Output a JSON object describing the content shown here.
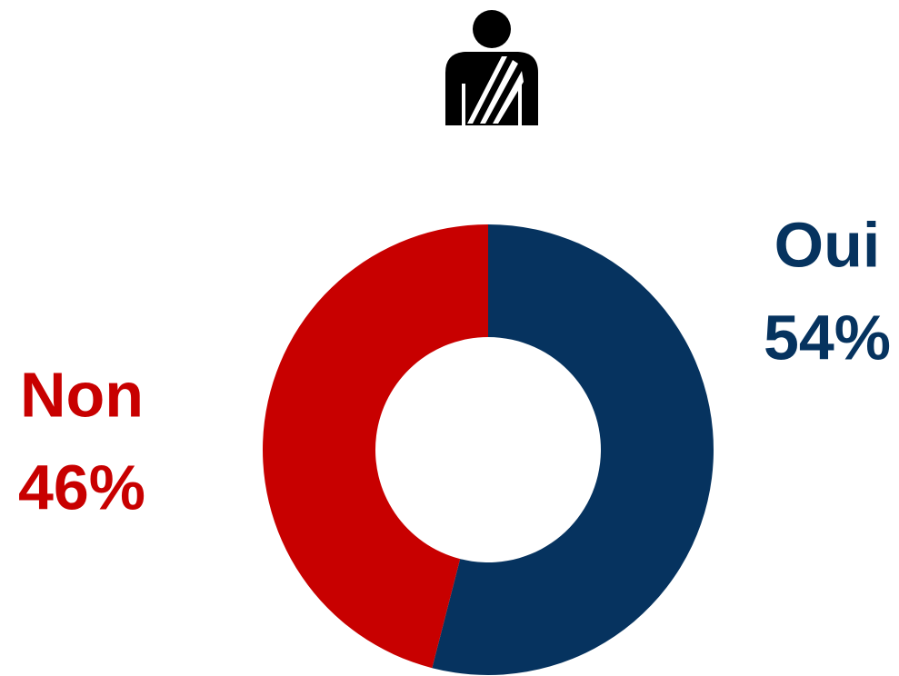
{
  "chart_data": {
    "type": "donut",
    "categories": [
      "Oui",
      "Non"
    ],
    "values": [
      54,
      46
    ],
    "value_labels": [
      "54%",
      "46%"
    ],
    "colors": [
      "#06335f",
      "#c80000"
    ]
  }
}
